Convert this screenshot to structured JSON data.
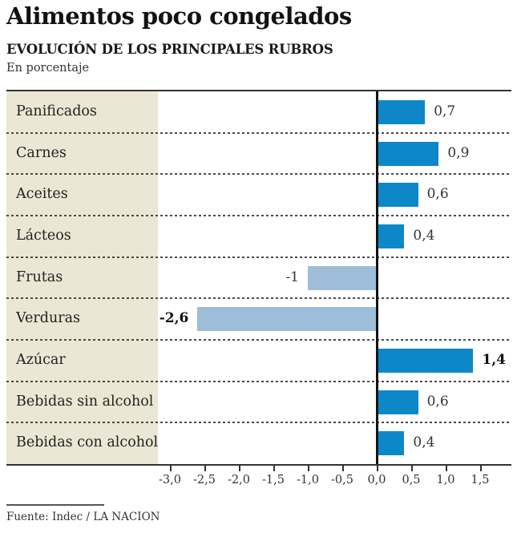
{
  "header": {
    "title": "Alimentos poco congelados",
    "subtitle": "EVOLUCIÓN DE LOS PRINCIPALES RUBROS",
    "unit_label": "En porcentaje"
  },
  "chart_data": {
    "type": "bar",
    "orientation": "horizontal",
    "title": "Alimentos poco congelados",
    "subtitle": "EVOLUCIÓN DE LOS PRINCIPALES RUBROS",
    "unit": "En porcentaje",
    "categories": [
      "Panificados",
      "Carnes",
      "Aceites",
      "Lácteos",
      "Frutas",
      "Verduras",
      "Azúcar",
      "Bebidas sin alcohol",
      "Bebidas con alcohol"
    ],
    "values": [
      0.7,
      0.9,
      0.6,
      0.4,
      -1,
      -2.6,
      1.4,
      0.6,
      0.4
    ],
    "value_labels": [
      "0,7",
      "0,9",
      "0,6",
      "0,4",
      "-1",
      "-2,6",
      "1,4",
      "0,6",
      "0,4"
    ],
    "bold_value_labels": [
      false,
      false,
      false,
      false,
      false,
      true,
      true,
      false,
      false
    ],
    "x_tick_labels": [
      "-3,0",
      "-2,5",
      "-2,0",
      "-1,5",
      "-1,0",
      "-0,5",
      "0,0",
      "0,5",
      "1,0",
      "1,5"
    ],
    "x_tick_values": [
      -3,
      -2.5,
      -2,
      -1.5,
      -1,
      -0.5,
      0,
      0.5,
      1,
      1.5
    ],
    "xlim": [
      -3.0,
      1.5
    ],
    "grid": false,
    "legend": "none",
    "colors": {
      "positive_bar": "#0e87c9",
      "negative_bar": "#9dbdd8",
      "category_column_bg": "#eae7d4",
      "axis_line": "#333333",
      "zero_line": "#111111"
    }
  },
  "footer": {
    "source": "Fuente: Indec / LA NACION"
  }
}
